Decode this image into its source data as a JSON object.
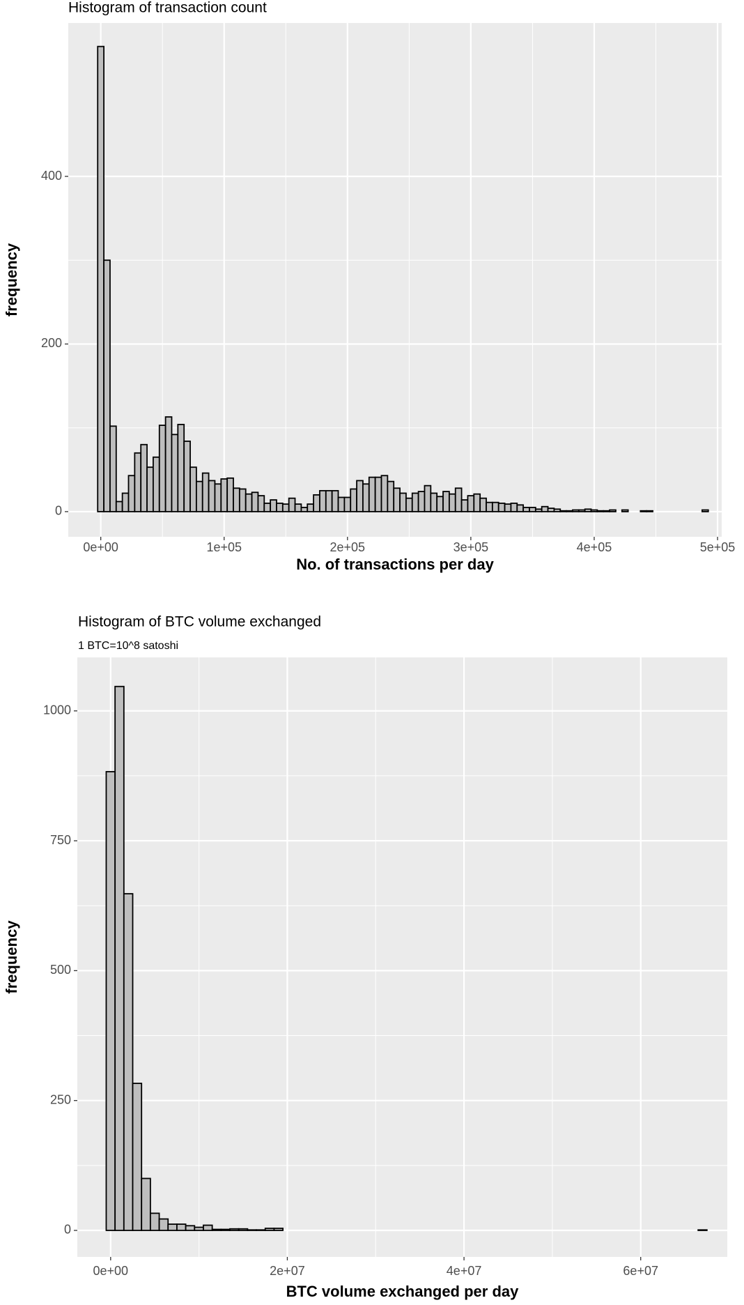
{
  "chart_data": [
    {
      "type": "histogram",
      "title": "Histogram of transaction count",
      "x_label": "No. of transactions per day",
      "y_label": "frequency",
      "color": "#bebebe",
      "grid": true,
      "xlim": [
        -26350,
        503378
      ],
      "ylim": [
        -30,
        583
      ],
      "xticks": [
        {
          "value": 0,
          "label": "0e+00"
        },
        {
          "value": 100000,
          "label": "1e+05"
        },
        {
          "value": 200000,
          "label": "2e+05"
        },
        {
          "value": 300000,
          "label": "3e+05"
        },
        {
          "value": 400000,
          "label": "4e+05"
        },
        {
          "value": 500000,
          "label": "5e+05"
        }
      ],
      "yticks": [
        0,
        200,
        400
      ],
      "bins": [
        -2500,
        2500,
        7500,
        12500,
        17500,
        22500,
        27500,
        32500,
        37500,
        42500,
        47500,
        52500,
        57500,
        62500,
        67500,
        72500,
        77500,
        82500,
        87500,
        92500,
        97500,
        102500,
        107500,
        112500,
        117500,
        122500,
        127500,
        132500,
        137500,
        142500,
        147500,
        152500,
        157500,
        162500,
        167500,
        172500,
        177500,
        182500,
        187500,
        192500,
        197500,
        202500,
        207500,
        212500,
        217500,
        222500,
        227500,
        232500,
        237500,
        242500,
        247500,
        252500,
        257500,
        262500,
        267500,
        272500,
        277500,
        282500,
        287500,
        292500,
        297500,
        302500,
        307500,
        312500,
        317500,
        322500,
        327500,
        332500,
        337500,
        342500,
        347500,
        352500,
        357500,
        362500,
        367500,
        372500,
        377500,
        382500,
        387500,
        392500,
        397500,
        402500,
        407500,
        412500,
        417500,
        422500,
        427500,
        432500,
        437500,
        442500,
        447500,
        452500,
        457500,
        462500,
        467500,
        472500,
        477500,
        482500,
        487500,
        492500
      ],
      "values": [
        555,
        300,
        102,
        12,
        22,
        43,
        70,
        80,
        53,
        65,
        103,
        113,
        92,
        104,
        84,
        53,
        36,
        46,
        37,
        33,
        39,
        40,
        28,
        27,
        21,
        23,
        19,
        10,
        14,
        10,
        9,
        16,
        9,
        5,
        9,
        20,
        25,
        25,
        25,
        17,
        17,
        27,
        37,
        33,
        41,
        41,
        43,
        36,
        28,
        22,
        16,
        22,
        24,
        31,
        22,
        18,
        24,
        21,
        28,
        14,
        19,
        21,
        16,
        11,
        11,
        10,
        9,
        10,
        8,
        5,
        5,
        3,
        6,
        4,
        3,
        1,
        1,
        2,
        2,
        3,
        2,
        1,
        1,
        2,
        0,
        2,
        0,
        0,
        1,
        1,
        0,
        0,
        0,
        0,
        0,
        0,
        0,
        0,
        2
      ]
    },
    {
      "type": "histogram",
      "title": "Histogram of BTC volume exchanged",
      "subtitle": "1 BTC=10^8 satoshi",
      "x_label": "BTC volume exchanged per day",
      "y_label": "frequency",
      "color": "#bebebe",
      "grid": true,
      "xlim": [
        -3770000,
        69800000
      ],
      "ylim": [
        -51,
        1103
      ],
      "xticks": [
        {
          "value": 0,
          "label": "0e+00"
        },
        {
          "value": 20000000,
          "label": "2e+07"
        },
        {
          "value": 40000000,
          "label": "4e+07"
        },
        {
          "value": 60000000,
          "label": "6e+07"
        }
      ],
      "yticks": [
        0,
        250,
        500,
        750,
        1000
      ],
      "bins": [
        -500000,
        500000,
        1500000,
        2500000,
        3500000,
        4500000,
        5500000,
        6500000,
        7500000,
        8500000,
        9500000,
        10500000,
        11500000,
        12500000,
        13500000,
        14500000,
        15500000,
        16500000,
        17500000,
        18500000,
        19500000,
        20500000,
        21500000,
        22500000,
        23500000,
        24500000,
        25500000,
        26500000,
        27500000,
        28500000,
        29500000,
        30500000,
        31500000,
        32500000,
        33500000,
        34500000,
        35500000,
        36500000,
        37500000,
        38500000,
        39500000,
        40500000,
        41500000,
        42500000,
        43500000,
        44500000,
        45500000,
        46500000,
        47500000,
        48500000,
        49500000,
        50500000,
        51500000,
        52500000,
        53500000,
        54500000,
        55500000,
        56500000,
        57500000,
        58500000,
        59500000,
        60500000,
        61500000,
        62500000,
        63500000,
        64500000,
        65500000,
        66500000,
        67500000
      ],
      "values": [
        883,
        1047,
        648,
        283,
        100,
        33,
        22,
        12,
        12,
        9,
        6,
        10,
        2,
        2,
        3,
        3,
        1,
        1,
        4,
        4,
        0,
        0,
        0,
        0,
        0,
        0,
        0,
        0,
        0,
        0,
        0,
        0,
        0,
        0,
        0,
        0,
        0,
        0,
        0,
        0,
        0,
        0,
        0,
        0,
        0,
        0,
        0,
        0,
        0,
        0,
        0,
        0,
        0,
        0,
        0,
        0,
        0,
        0,
        0,
        0,
        0,
        0,
        0,
        0,
        0,
        0,
        0,
        1
      ]
    }
  ]
}
